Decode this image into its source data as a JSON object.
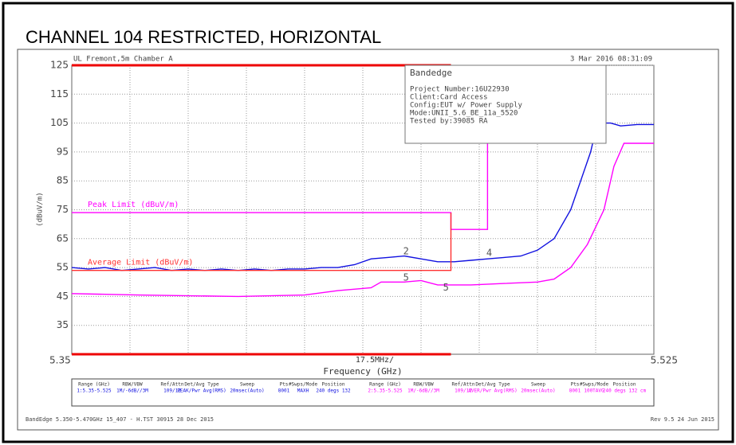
{
  "chart_data": {
    "type": "line",
    "title": "CHANNEL 104 RESTRICTED, HORIZONTAL",
    "site": "UL Fremont,5m Chamber A",
    "timestamp": "3 Mar 2016  08:31:09",
    "ylabel": "(dBuV/m)",
    "xlabel": "Frequency (GHz)",
    "span_label": "17.5MHz/",
    "xlim": [
      5.35,
      5.525
    ],
    "xticks": [
      5.35,
      5.525
    ],
    "ylim": [
      25,
      125
    ],
    "yticks": [
      35,
      45,
      55,
      65,
      75,
      85,
      95,
      105,
      115,
      125
    ],
    "grid": true,
    "series": [
      {
        "color": "#1010e0",
        "x": [
          5.35,
          5.355,
          5.36,
          5.365,
          5.37,
          5.375,
          5.38,
          5.385,
          5.39,
          5.395,
          5.4,
          5.405,
          5.41,
          5.415,
          5.42,
          5.425,
          5.43,
          5.435,
          5.44,
          5.445,
          5.45,
          5.455,
          5.46,
          5.465,
          5.47,
          5.475,
          5.48,
          5.485,
          5.49,
          5.495,
          5.5,
          5.503,
          5.506,
          5.508,
          5.512,
          5.515,
          5.52,
          5.525
        ],
        "values": [
          55,
          54.5,
          55,
          54,
          54.5,
          55,
          54,
          54.5,
          54,
          54.5,
          54,
          54.5,
          54,
          54.5,
          54.5,
          55,
          55,
          56,
          58,
          58.5,
          59,
          58,
          57,
          57,
          57.5,
          58,
          58.5,
          59,
          61,
          65,
          75,
          85,
          95,
          105,
          105,
          104,
          104.5,
          104.5
        ]
      },
      {
        "color": "#ff00ff",
        "x": [
          5.35,
          5.37,
          5.4,
          5.42,
          5.43,
          5.44,
          5.443,
          5.45,
          5.455,
          5.46,
          5.47,
          5.48,
          5.49,
          5.495,
          5.5,
          5.505,
          5.51,
          5.513,
          5.516,
          5.52,
          5.525
        ],
        "values": [
          46,
          45.5,
          45,
          45.5,
          47,
          48,
          50,
          50,
          50.5,
          49,
          49,
          49.5,
          50,
          51,
          55,
          63,
          75,
          90,
          98,
          98,
          98
        ]
      },
      {
        "name": "Peak Limit (dBuV/m)",
        "color": "#ff00ff",
        "x": [
          5.35,
          5.464,
          5.464,
          5.475,
          5.475
        ],
        "values": [
          74,
          74,
          68.2,
          68.2,
          98
        ]
      },
      {
        "name": "Average Limit (dBuV/m)",
        "color": "#ff3030",
        "x": [
          5.35,
          5.464,
          5.464
        ],
        "values": [
          54,
          54,
          74
        ]
      },
      {
        "color": "#ee0000",
        "x": [
          5.35,
          5.464
        ],
        "values": [
          125,
          125
        ]
      },
      {
        "color": "#ee0000",
        "x": [
          5.35,
          5.464
        ],
        "values": [
          25,
          25
        ]
      }
    ],
    "annotations": [
      {
        "text": "2",
        "x": 5.4505,
        "y": 60.5
      },
      {
        "text": "4",
        "x": 5.4755,
        "y": 60
      },
      {
        "text": "5",
        "x": 5.4505,
        "y": 51.5
      },
      {
        "text": "5",
        "x": 5.4625,
        "y": 48
      }
    ]
  },
  "info_box": {
    "title": "Bandedge",
    "lines": [
      "Project Number:16U22930",
      "Client:Card Access",
      "Config:EUT w/ Power Supply",
      "Mode:UNII_5.6_BE_11a_5520",
      "Tested by:39085 RA"
    ]
  },
  "settings_table": {
    "columns": [
      "Range (GHz)",
      "RBW/VBW",
      "Ref/Attn",
      "Det/Avg Type",
      "Sweep",
      "Pts",
      "#Swps/Mode",
      "Position"
    ],
    "rows": [
      [
        "1:5.35-5.525",
        "1M/-6dB//3M",
        "109/12",
        "PEAK/Pwr Avg(RMS)",
        "20msec(Auto)",
        "8001",
        "MAXH",
        "240 degs 132"
      ],
      [
        "2:5.35-5.525",
        "1M/-6dB//3M",
        "109/12",
        "AVER/Pwr Avg(RMS)",
        "20msec(Auto)",
        "8001",
        "100TAVG",
        "240 degs 132 cm"
      ]
    ]
  },
  "footer": {
    "left": "BandEdge 5.350-5.470GHz 15_407 - H.TST 30915 28 Dec 2015",
    "right": "Rev 9.5 24 Jun 2015"
  }
}
